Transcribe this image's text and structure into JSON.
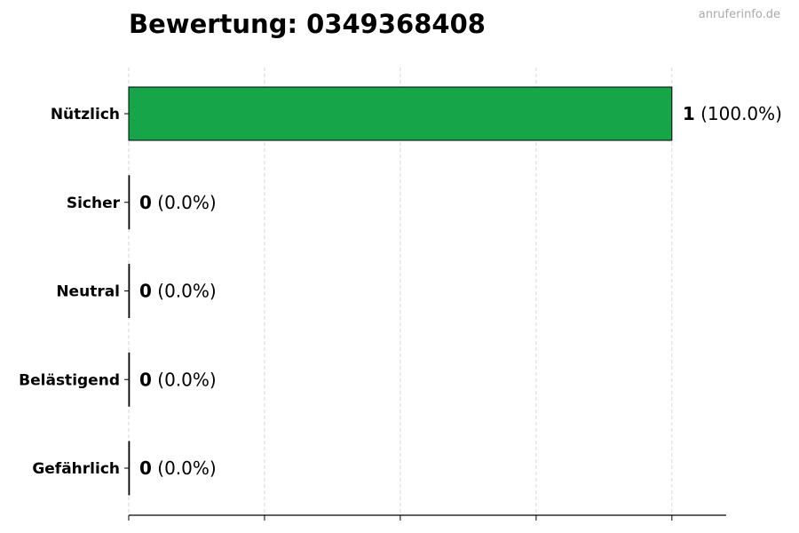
{
  "chart_data": {
    "type": "bar",
    "orientation": "horizontal",
    "title": "Bewertung: 0349368408",
    "watermark": "anruferinfo.de",
    "categories": [
      "Nützlich",
      "Sicher",
      "Neutral",
      "Belästigend",
      "Gefährlich"
    ],
    "values": [
      1,
      0,
      0,
      0,
      0
    ],
    "data_labels": [
      {
        "count": "1",
        "percent": "(100.0%)"
      },
      {
        "count": "0",
        "percent": "(0.0%)"
      },
      {
        "count": "0",
        "percent": "(0.0%)"
      },
      {
        "count": "0",
        "percent": "(0.0%)"
      },
      {
        "count": "0",
        "percent": "(0.0%)"
      }
    ],
    "bar_color": "#17a54a",
    "xlim": [
      0,
      1.1
    ],
    "xticks": [
      0,
      0.25,
      0.5,
      0.75,
      1.0
    ],
    "xtick_labels_visible": false,
    "grid": "vertical dashed",
    "xlabel": "",
    "ylabel": ""
  }
}
